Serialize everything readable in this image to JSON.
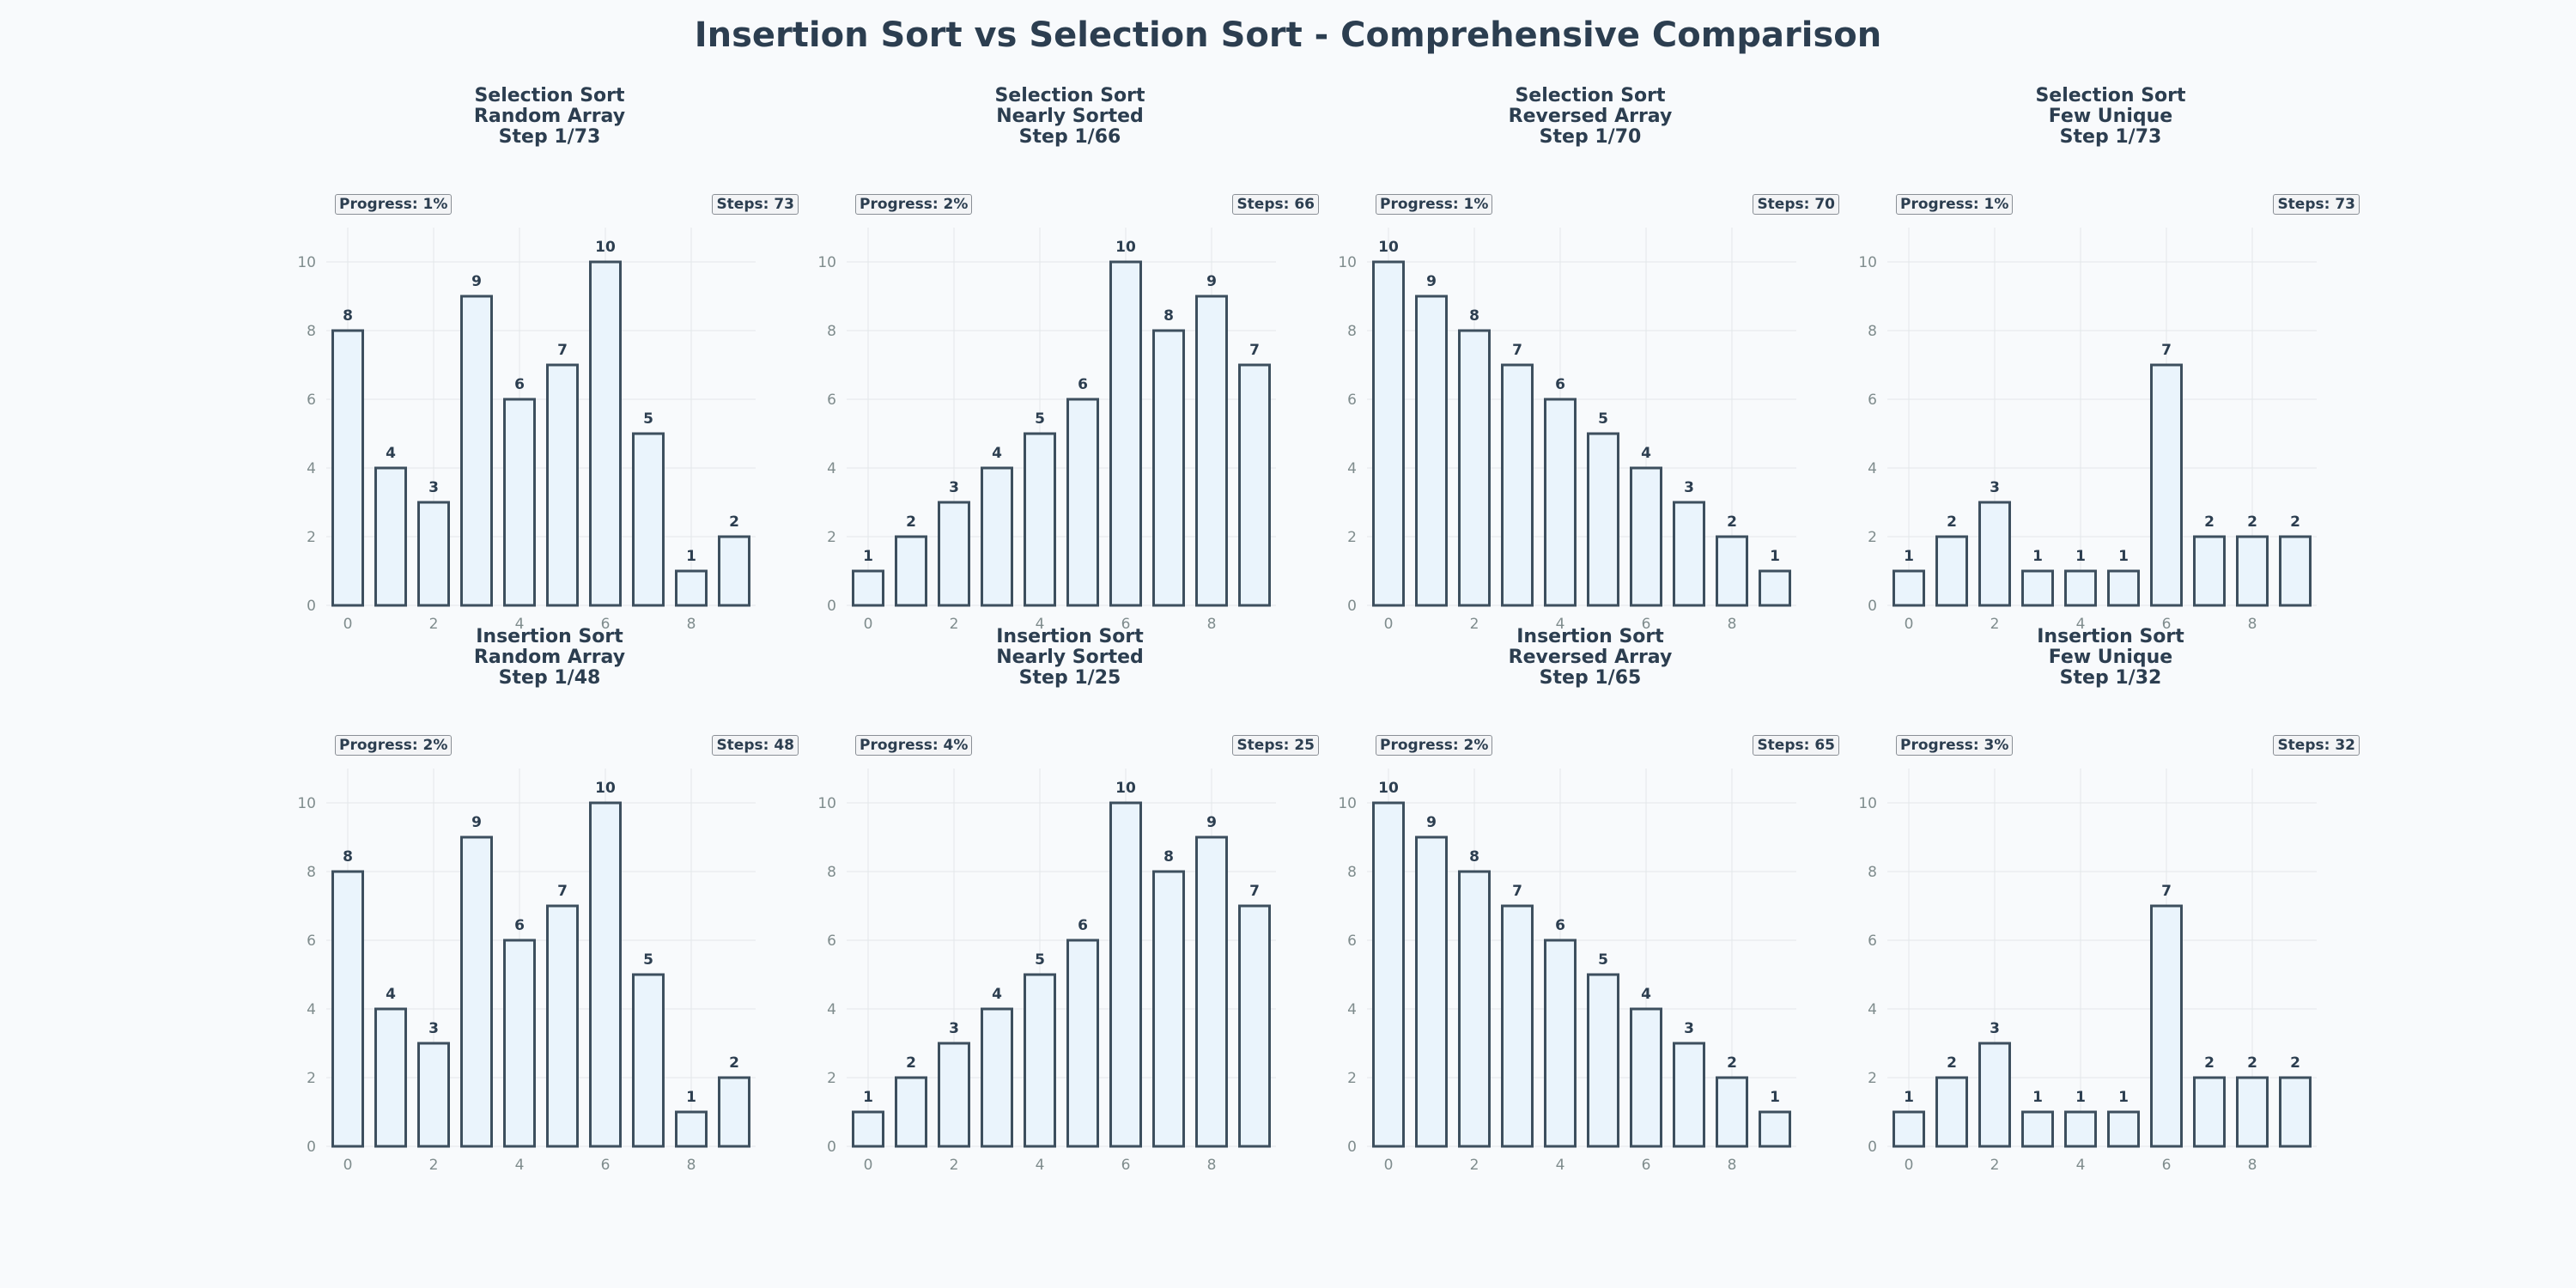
{
  "figure": {
    "title": "Insertion Sort vs Selection Sort - Comprehensive Comparison"
  },
  "colors": {
    "bar_fill": "#eaf4fc",
    "bar_stroke": "#3d4f5e",
    "grid": "#e3e7ea",
    "text": "#2c3e50"
  },
  "chart_data": [
    {
      "type": "bar",
      "title_lines": [
        "Selection Sort",
        "Random Array",
        "Step 1/73"
      ],
      "progress": "Progress: 1%",
      "steps": "Steps: 73",
      "x": [
        0,
        1,
        2,
        3,
        4,
        5,
        6,
        7,
        8,
        9
      ],
      "values": [
        8,
        4,
        3,
        9,
        6,
        7,
        10,
        5,
        1,
        2
      ],
      "ylim": [
        0,
        11
      ],
      "xticks": [
        0,
        2,
        4,
        6,
        8
      ],
      "yticks": [
        0,
        2,
        4,
        6,
        8,
        10
      ],
      "grid": true
    },
    {
      "type": "bar",
      "title_lines": [
        "Selection Sort",
        "Nearly Sorted",
        "Step 1/66"
      ],
      "progress": "Progress: 2%",
      "steps": "Steps: 66",
      "x": [
        0,
        1,
        2,
        3,
        4,
        5,
        6,
        7,
        8,
        9
      ],
      "values": [
        1,
        2,
        3,
        4,
        5,
        6,
        10,
        8,
        9,
        7
      ],
      "ylim": [
        0,
        11
      ],
      "xticks": [
        0,
        2,
        4,
        6,
        8
      ],
      "yticks": [
        0,
        2,
        4,
        6,
        8,
        10
      ],
      "grid": true
    },
    {
      "type": "bar",
      "title_lines": [
        "Selection Sort",
        "Reversed Array",
        "Step 1/70"
      ],
      "progress": "Progress: 1%",
      "steps": "Steps: 70",
      "x": [
        0,
        1,
        2,
        3,
        4,
        5,
        6,
        7,
        8,
        9
      ],
      "values": [
        10,
        9,
        8,
        7,
        6,
        5,
        4,
        3,
        2,
        1
      ],
      "ylim": [
        0,
        11
      ],
      "xticks": [
        0,
        2,
        4,
        6,
        8
      ],
      "yticks": [
        0,
        2,
        4,
        6,
        8,
        10
      ],
      "grid": true
    },
    {
      "type": "bar",
      "title_lines": [
        "Selection Sort",
        "Few Unique",
        "Step 1/73"
      ],
      "progress": "Progress: 1%",
      "steps": "Steps: 73",
      "x": [
        0,
        1,
        2,
        3,
        4,
        5,
        6,
        7,
        8,
        9
      ],
      "values": [
        1,
        2,
        3,
        1,
        1,
        1,
        7,
        2,
        2,
        2
      ],
      "ylim": [
        0,
        11
      ],
      "xticks": [
        0,
        2,
        4,
        6,
        8
      ],
      "yticks": [
        0,
        2,
        4,
        6,
        8,
        10
      ],
      "grid": true
    },
    {
      "type": "bar",
      "title_lines": [
        "Insertion Sort",
        "Random Array",
        "Step 1/48"
      ],
      "progress": "Progress: 2%",
      "steps": "Steps: 48",
      "x": [
        0,
        1,
        2,
        3,
        4,
        5,
        6,
        7,
        8,
        9
      ],
      "values": [
        8,
        4,
        3,
        9,
        6,
        7,
        10,
        5,
        1,
        2
      ],
      "ylim": [
        0,
        11
      ],
      "xticks": [
        0,
        2,
        4,
        6,
        8
      ],
      "yticks": [
        0,
        2,
        4,
        6,
        8,
        10
      ],
      "grid": true
    },
    {
      "type": "bar",
      "title_lines": [
        "Insertion Sort",
        "Nearly Sorted",
        "Step 1/25"
      ],
      "progress": "Progress: 4%",
      "steps": "Steps: 25",
      "x": [
        0,
        1,
        2,
        3,
        4,
        5,
        6,
        7,
        8,
        9
      ],
      "values": [
        1,
        2,
        3,
        4,
        5,
        6,
        10,
        8,
        9,
        7
      ],
      "ylim": [
        0,
        11
      ],
      "xticks": [
        0,
        2,
        4,
        6,
        8
      ],
      "yticks": [
        0,
        2,
        4,
        6,
        8,
        10
      ],
      "grid": true
    },
    {
      "type": "bar",
      "title_lines": [
        "Insertion Sort",
        "Reversed Array",
        "Step 1/65"
      ],
      "progress": "Progress: 2%",
      "steps": "Steps: 65",
      "x": [
        0,
        1,
        2,
        3,
        4,
        5,
        6,
        7,
        8,
        9
      ],
      "values": [
        10,
        9,
        8,
        7,
        6,
        5,
        4,
        3,
        2,
        1
      ],
      "ylim": [
        0,
        11
      ],
      "xticks": [
        0,
        2,
        4,
        6,
        8
      ],
      "yticks": [
        0,
        2,
        4,
        6,
        8,
        10
      ],
      "grid": true
    },
    {
      "type": "bar",
      "title_lines": [
        "Insertion Sort",
        "Few Unique",
        "Step 1/32"
      ],
      "progress": "Progress: 3%",
      "steps": "Steps: 32",
      "x": [
        0,
        1,
        2,
        3,
        4,
        5,
        6,
        7,
        8,
        9
      ],
      "values": [
        1,
        2,
        3,
        1,
        1,
        1,
        7,
        2,
        2,
        2
      ],
      "ylim": [
        0,
        11
      ],
      "xticks": [
        0,
        2,
        4,
        6,
        8
      ],
      "yticks": [
        0,
        2,
        4,
        6,
        8,
        10
      ],
      "grid": true
    }
  ]
}
